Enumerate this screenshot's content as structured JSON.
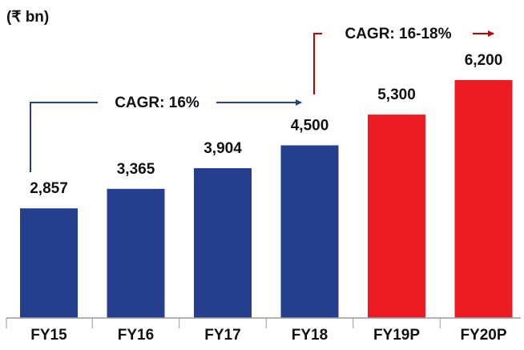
{
  "chart_data": {
    "type": "bar",
    "unit_label": "(₹ bn)",
    "categories": [
      "FY15",
      "FY16",
      "FY17",
      "FY18",
      "FY19P",
      "FY20P"
    ],
    "values": [
      2857,
      3365,
      3904,
      4500,
      5300,
      6200
    ],
    "value_labels": [
      "2,857",
      "3,365",
      "3,904",
      "4,500",
      "5,300",
      "6,200"
    ],
    "colors": [
      "#253f8e",
      "#253f8e",
      "#253f8e",
      "#253f8e",
      "#ed1c24",
      "#ed1c24"
    ],
    "annotations": [
      {
        "text": "CAGR: 16%",
        "color": "#253f8e"
      },
      {
        "text": "CAGR: 16-18%",
        "color": "#c00000"
      }
    ]
  }
}
